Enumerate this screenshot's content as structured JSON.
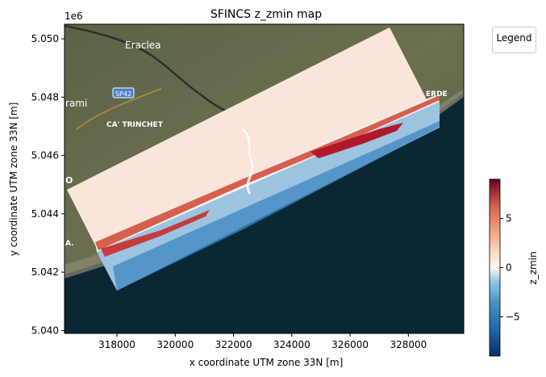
{
  "chart_data": {
    "type": "heatmap",
    "title": "SFINCS z_zmin map",
    "xlabel": "x coordinate UTM zone 33N [m]",
    "ylabel": "y coordinate UTM zone 33N [m]",
    "y_offset_label": "1e6",
    "xlim": [
      316200,
      329900
    ],
    "ylim": [
      5.0399,
      5.0505
    ],
    "x_ticks": [
      318000,
      320000,
      322000,
      324000,
      326000,
      328000
    ],
    "x_tick_labels": [
      "318000",
      "320000",
      "322000",
      "324000",
      "326000",
      "328000"
    ],
    "y_ticks": [
      5.04,
      5.042,
      5.044,
      5.046,
      5.048,
      5.05
    ],
    "y_tick_labels": [
      "5.040",
      "5.042",
      "5.044",
      "5.046",
      "5.048",
      "5.050"
    ],
    "legend_label": "Legend",
    "colorbar": {
      "label": "z_zmin",
      "colormap": "RdBu_r",
      "range": [
        -9,
        9
      ],
      "ticks": [
        5,
        0,
        -5
      ],
      "tick_labels": [
        "5",
        "0",
        "−5"
      ]
    },
    "basemap_labels": [
      "Eraclea",
      "SP42",
      "CA' TRINCHET",
      "rami",
      "ERDE",
      "O",
      "A."
    ],
    "colors": {
      "sea": "#0b2734",
      "land": "#4f5a3c",
      "high": "#a50f15",
      "low": "#2166ac"
    }
  }
}
